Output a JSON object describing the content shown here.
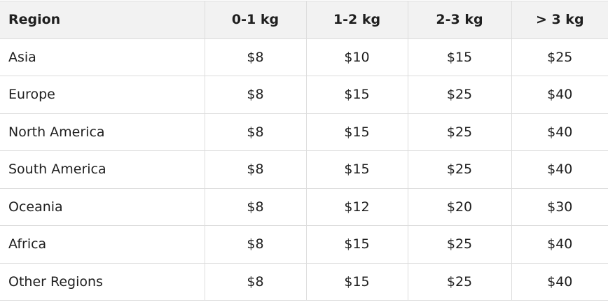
{
  "table": {
    "headers": [
      "Region",
      "0-1 kg",
      "1-2 kg",
      "2-3 kg",
      "> 3 kg"
    ],
    "rows": [
      [
        "Asia",
        "$8",
        "$10",
        "$15",
        "$25"
      ],
      [
        "Europe",
        "$8",
        "$15",
        "$25",
        "$40"
      ],
      [
        "North America",
        "$8",
        "$15",
        "$25",
        "$40"
      ],
      [
        "South America",
        "$8",
        "$15",
        "$25",
        "$40"
      ],
      [
        "Oceania",
        "$8",
        "$12",
        "$20",
        "$30"
      ],
      [
        "Africa",
        "$8",
        "$15",
        "$25",
        "$40"
      ],
      [
        "Other Regions",
        "$8",
        "$15",
        "$25",
        "$40"
      ]
    ]
  }
}
